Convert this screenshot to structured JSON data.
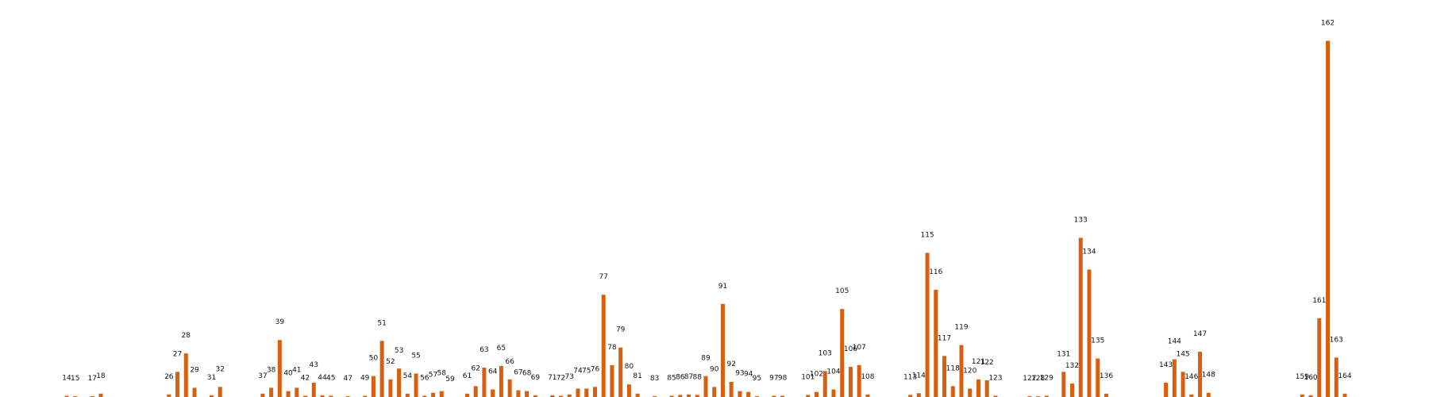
{
  "chart_data": {
    "type": "bar",
    "bar_color": "#d95f0e",
    "x": [
      14,
      15,
      17,
      18,
      26,
      27,
      28,
      29,
      31,
      32,
      37,
      38,
      39,
      40,
      41,
      42,
      43,
      44,
      45,
      47,
      49,
      50,
      51,
      52,
      53,
      54,
      55,
      56,
      57,
      58,
      59,
      61,
      62,
      63,
      64,
      65,
      66,
      67,
      68,
      69,
      71,
      72,
      73,
      74,
      75,
      76,
      77,
      78,
      79,
      80,
      81,
      83,
      85,
      86,
      87,
      88,
      89,
      90,
      91,
      92,
      93,
      94,
      95,
      97,
      98,
      101,
      102,
      103,
      104,
      105,
      106,
      107,
      108,
      113,
      114,
      115,
      116,
      117,
      118,
      119,
      120,
      121,
      122,
      123,
      127,
      128,
      129,
      131,
      132,
      133,
      134,
      135,
      136,
      143,
      144,
      145,
      146,
      147,
      148,
      159,
      160,
      161,
      162,
      163,
      164
    ],
    "labels": [
      "14",
      "15",
      "17",
      "18",
      "26",
      "27",
      "28",
      "29",
      "31",
      "32",
      "37",
      "38",
      "39",
      "40",
      "41",
      "42",
      "43",
      "44",
      "45",
      "47",
      "49",
      "50",
      "51",
      "52",
      "53",
      "54",
      "55",
      "56",
      "57",
      "58",
      "59",
      "61",
      "62",
      "63",
      "64",
      "65",
      "66",
      "67",
      "68",
      "69",
      "71",
      "72",
      "73",
      "74",
      "75",
      "76",
      "77",
      "78",
      "79",
      "80",
      "81",
      "83",
      "85",
      "86",
      "87",
      "88",
      "89",
      "90",
      "91",
      "92",
      "93",
      "94",
      "95",
      "97",
      "98",
      "101",
      "102",
      "103",
      "104",
      "105",
      "106",
      "107",
      "108",
      "113",
      "114",
      "115",
      "116",
      "117",
      "118",
      "119",
      "120",
      "121",
      "122",
      "123",
      "127",
      "128",
      "129",
      "131",
      "132",
      "133",
      "134",
      "135",
      "136",
      "143",
      "144",
      "145",
      "146",
      "147",
      "148",
      "159",
      "160",
      "161",
      "162",
      "163",
      "164"
    ],
    "values": [
      1.5,
      1,
      1,
      4,
      3,
      30,
      52,
      11,
      2,
      12,
      4,
      11,
      68,
      7,
      11,
      1.5,
      17,
      2,
      1.5,
      1,
      1.5,
      25,
      67,
      21,
      34,
      4,
      28,
      1.5,
      5,
      7,
      0,
      4,
      13,
      35,
      9,
      37,
      21,
      8,
      7,
      2,
      2,
      1.5,
      3,
      10,
      10,
      12,
      122,
      38,
      59,
      15,
      4,
      1,
      1.5,
      2.5,
      3,
      2.5,
      25,
      12,
      111,
      18,
      7,
      6,
      1,
      1.5,
      1.5,
      2.5,
      6,
      31,
      9,
      105,
      36,
      38,
      3,
      2.5,
      4.5,
      172,
      128,
      49,
      13,
      62,
      10,
      21,
      20,
      1.5,
      1,
      1,
      1.5,
      30,
      16,
      190,
      152,
      46,
      4,
      17,
      45,
      30,
      3,
      54,
      5,
      3,
      2,
      94,
      425,
      47,
      4
    ],
    "ylim": [
      0,
      450
    ],
    "grid": false,
    "legend": "none"
  }
}
